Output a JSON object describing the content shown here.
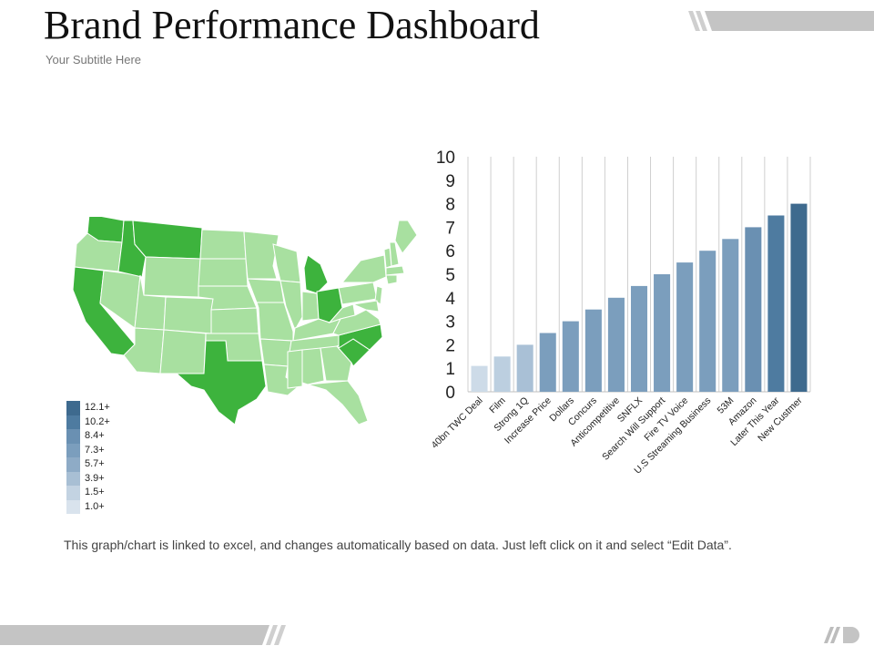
{
  "header": {
    "title": "Brand Performance Dashboard",
    "subtitle": "Your Subtitle Here"
  },
  "map": {
    "colors": {
      "highlight": "#3db33d",
      "base": "#a8e0a0",
      "border": "#ffffff"
    },
    "highlighted_states": [
      "WA",
      "MT",
      "ID",
      "CA",
      "TX",
      "MI",
      "OH",
      "NC",
      "SC"
    ]
  },
  "legend": [
    {
      "label": "12.1+",
      "color": "#3e6a8e"
    },
    {
      "label": "10.2+",
      "color": "#4e7ba0"
    },
    {
      "label": "8.4+",
      "color": "#6a90b2"
    },
    {
      "label": "7.3+",
      "color": "#7b9ebd"
    },
    {
      "label": "5.7+",
      "color": "#8eabc6"
    },
    {
      "label": "3.9+",
      "color": "#a8bfd4"
    },
    {
      "label": "1.5+",
      "color": "#c3d3e2"
    },
    {
      "label": "1.0+",
      "color": "#d9e3ed"
    }
  ],
  "chart_data": {
    "type": "bar",
    "categories": [
      "40bn TWC Deal",
      "Film",
      "Strong 1Q",
      "Increase Price",
      "Dollars",
      "Concurs",
      "Anticompetitive",
      "SNFLX",
      "Search Will Support",
      "Fire TV Voice",
      "U.S Streaming Business",
      "53M",
      "Amazon",
      "Later This Year",
      "New Custmer"
    ],
    "values": [
      1.1,
      1.5,
      2,
      2.5,
      3,
      3.5,
      4,
      4.5,
      5,
      5.5,
      6,
      6.5,
      7,
      7.5,
      8
    ],
    "colors": [
      "#cddbe8",
      "#bccfe0",
      "#a9c0d6",
      "#7b9ebd",
      "#7b9ebd",
      "#7b9ebd",
      "#7b9ebd",
      "#7b9ebd",
      "#7b9ebd",
      "#7b9ebd",
      "#7b9ebd",
      "#7b9ebd",
      "#6a90b2",
      "#4e7ba0",
      "#3e6a8e"
    ],
    "yticks": [
      "0",
      "1",
      "2",
      "3",
      "4",
      "5",
      "6",
      "7",
      "8",
      "9",
      "10"
    ],
    "ylim": [
      0,
      10
    ],
    "title": "",
    "xlabel": "",
    "ylabel": "",
    "grid": "vertical"
  },
  "footer": {
    "note": "This graph/chart is linked to excel, and changes automatically based on data. Just left click on it and select “Edit Data”."
  }
}
